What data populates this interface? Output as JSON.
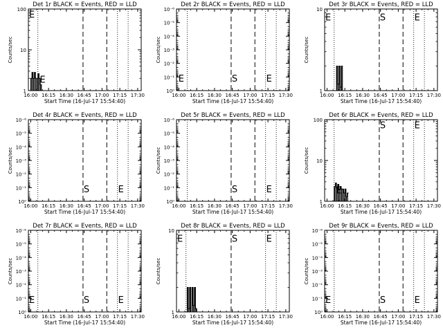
{
  "chart_data": [
    {
      "type": "line",
      "title": "Det 1r BLACK = Events, RED = LLD",
      "xlabel": "Start Time (16-Jul-17 15:54:40)",
      "ylabel": "Counts/sec",
      "yscale": "log",
      "ylim": [
        1,
        100
      ],
      "yticks": [
        {
          "v": 1,
          "label": "1"
        },
        {
          "v": 10,
          "label": "10"
        },
        {
          "v": 100,
          "label": "100"
        }
      ],
      "xlim": [
        "15:58",
        "17:33"
      ],
      "xticks": [
        "16:00",
        "16:15",
        "16:30",
        "16:45",
        "17:00",
        "17:15",
        "17:30"
      ],
      "dotted_lines_x": [
        "16:06",
        "17:13",
        "17:22"
      ],
      "dashed_lines_x": [
        "16:44",
        "17:04"
      ],
      "markers": [
        {
          "label": "E",
          "x": "15:58",
          "y": 75
        },
        {
          "label": "E",
          "x": "16:07",
          "y": 1.9
        }
      ],
      "series": [
        {
          "color": "#000000",
          "x": [
            "16:00",
            "16:01",
            "16:02",
            "16:03",
            "16:04",
            "16:05",
            "16:06",
            "16:07",
            "16:08",
            "16:09"
          ],
          "y": [
            2,
            2.8,
            2,
            2.8,
            2,
            2,
            2.6,
            2,
            1.4,
            1
          ]
        }
      ]
    },
    {
      "type": "line",
      "title": "Det 2r BLACK = Events, RED = LLD",
      "xlabel": "Start Time (16-Jul-17 15:54:40)",
      "ylabel": "Counts/sec",
      "yscale": "log",
      "ylim": [
        1,
        1e-06
      ],
      "yticks": [
        {
          "v": 1,
          "label": "10⁰"
        },
        {
          "v": 0.1,
          "label": "10⁻¹"
        },
        {
          "v": 0.01,
          "label": "10⁻²"
        },
        {
          "v": 0.001,
          "label": "10⁻³"
        },
        {
          "v": 0.0001,
          "label": "10⁻⁴"
        },
        {
          "v": 1e-05,
          "label": "10⁻⁵"
        },
        {
          "v": 1e-06,
          "label": "10⁻⁶"
        }
      ],
      "xlim": [
        "15:58",
        "17:33"
      ],
      "xticks": [
        "16:00",
        "16:15",
        "16:30",
        "16:45",
        "17:00",
        "17:15",
        "17:30"
      ],
      "dotted_lines_x": [
        "16:07",
        "17:13",
        "17:22"
      ],
      "dashed_lines_x": [
        "16:44",
        "17:04"
      ],
      "markers": [
        {
          "label": "E",
          "x": "15:59",
          "y": 0.12
        },
        {
          "label": "S",
          "x": "16:44",
          "y": 0.12
        },
        {
          "label": "E",
          "x": "17:13",
          "y": 0.12
        }
      ],
      "series": []
    },
    {
      "type": "line",
      "title": "Det 3r BLACK = Events, RED = LLD",
      "xlabel": "Start Time (16-Jul-17 15:54:40)",
      "ylabel": "Counts/sec",
      "yscale": "log",
      "ylim": [
        1,
        10
      ],
      "yticks": [
        {
          "v": 1,
          "label": "1"
        },
        {
          "v": 10,
          "label": "10"
        }
      ],
      "xlim": [
        "15:58",
        "17:33"
      ],
      "xticks": [
        "16:00",
        "16:15",
        "16:30",
        "16:45",
        "17:00",
        "17:15",
        "17:30"
      ],
      "dotted_lines_x": [
        "16:06",
        "17:13",
        "17:22"
      ],
      "dashed_lines_x": [
        "16:44",
        "17:04"
      ],
      "markers": [
        {
          "label": "E",
          "x": "15:58",
          "y": 8
        },
        {
          "label": "S",
          "x": "16:44",
          "y": 8
        },
        {
          "label": "E",
          "x": "17:13",
          "y": 8
        }
      ],
      "series": [
        {
          "color": "#000000",
          "x": [
            "16:07",
            "16:08",
            "16:09",
            "16:10",
            "16:11",
            "16:12",
            "16:13"
          ],
          "y": [
            1,
            2,
            1.2,
            2,
            1.1,
            2,
            1
          ]
        }
      ]
    },
    {
      "type": "line",
      "title": "Det 4r BLACK = Events, RED = LLD",
      "xlabel": "Start Time (16-Jul-17 15:54:40)",
      "ylabel": "Counts/sec",
      "yscale": "log",
      "ylim": [
        1,
        1e-06
      ],
      "yticks": [
        {
          "v": 1,
          "label": "10⁰"
        },
        {
          "v": 0.1,
          "label": "10⁻¹"
        },
        {
          "v": 0.01,
          "label": "10⁻²"
        },
        {
          "v": 0.001,
          "label": "10⁻³"
        },
        {
          "v": 0.0001,
          "label": "10⁻⁴"
        },
        {
          "v": 1e-05,
          "label": "10⁻⁵"
        },
        {
          "v": 1e-06,
          "label": "10⁻⁶"
        }
      ],
      "xlim": [
        "15:58",
        "17:33"
      ],
      "xticks": [
        "16:00",
        "16:15",
        "16:30",
        "16:45",
        "17:00",
        "17:15",
        "17:30"
      ],
      "dotted_lines_x": [
        "16:06",
        "17:13",
        "17:22"
      ],
      "dashed_lines_x": [
        "16:44",
        "17:04"
      ],
      "markers": [
        {
          "label": "S",
          "x": "16:44",
          "y": 0.12
        },
        {
          "label": "E",
          "x": "17:13",
          "y": 0.12
        }
      ],
      "series": []
    },
    {
      "type": "line",
      "title": "Det 5r BLACK = Events, RED = LLD",
      "xlabel": "Start Time (16-Jul-17 15:54:40)",
      "ylabel": "Counts/sec",
      "yscale": "log",
      "ylim": [
        1,
        1e-06
      ],
      "yticks": [
        {
          "v": 1,
          "label": "10⁰"
        },
        {
          "v": 0.1,
          "label": "10⁻¹"
        },
        {
          "v": 0.01,
          "label": "10⁻²"
        },
        {
          "v": 0.001,
          "label": "10⁻³"
        },
        {
          "v": 0.0001,
          "label": "10⁻⁴"
        },
        {
          "v": 1e-05,
          "label": "10⁻⁵"
        },
        {
          "v": 1e-06,
          "label": "10⁻⁶"
        }
      ],
      "xlim": [
        "15:58",
        "17:33"
      ],
      "xticks": [
        "16:00",
        "16:15",
        "16:30",
        "16:45",
        "17:00",
        "17:15",
        "17:30"
      ],
      "dotted_lines_x": [
        "16:07",
        "17:13",
        "17:22"
      ],
      "dashed_lines_x": [
        "16:44",
        "17:04"
      ],
      "markers": [
        {
          "label": "S",
          "x": "16:44",
          "y": 0.12
        },
        {
          "label": "E",
          "x": "17:13",
          "y": 0.12
        }
      ],
      "series": []
    },
    {
      "type": "line",
      "title": "Det 6r BLACK = Events, RED = LLD",
      "xlabel": "Start Time (16-Jul-17 15:54:40)",
      "ylabel": "Counts/sec",
      "yscale": "log",
      "ylim": [
        1,
        100
      ],
      "yticks": [
        {
          "v": 1,
          "label": "1"
        },
        {
          "v": 10,
          "label": "10"
        },
        {
          "v": 100,
          "label": "100"
        }
      ],
      "xlim": [
        "15:58",
        "17:33"
      ],
      "xticks": [
        "16:00",
        "16:15",
        "16:30",
        "16:45",
        "17:00",
        "17:15",
        "17:30"
      ],
      "dotted_lines_x": [
        "16:06",
        "17:13",
        "17:22"
      ],
      "dashed_lines_x": [
        "16:44",
        "17:04"
      ],
      "markers": [
        {
          "label": "S",
          "x": "16:44",
          "y": 75
        },
        {
          "label": "E",
          "x": "17:13",
          "y": 75
        },
        {
          "label": "E",
          "x": "16:07",
          "y": 1.9
        }
      ],
      "series": [
        {
          "color": "#000000",
          "x": [
            "16:06",
            "16:07",
            "16:08",
            "16:09",
            "16:10",
            "16:11",
            "16:12",
            "16:13",
            "16:14",
            "16:15",
            "16:16",
            "16:17"
          ],
          "y": [
            2.3,
            2.8,
            2.1,
            2.6,
            2,
            2.3,
            2,
            2,
            1.6,
            2,
            1.3,
            1.6
          ]
        }
      ]
    },
    {
      "type": "line",
      "title": "Det 7r BLACK = Events, RED = LLD",
      "xlabel": "Start Time (16-Jul-17 15:54:40)",
      "ylabel": "Counts/sec",
      "yscale": "log",
      "ylim": [
        1,
        1e-06
      ],
      "yticks": [
        {
          "v": 1,
          "label": "10⁰"
        },
        {
          "v": 0.1,
          "label": "10⁻¹"
        },
        {
          "v": 0.01,
          "label": "10⁻²"
        },
        {
          "v": 0.001,
          "label": "10⁻³"
        },
        {
          "v": 0.0001,
          "label": "10⁻⁴"
        },
        {
          "v": 1e-05,
          "label": "10⁻⁵"
        },
        {
          "v": 1e-06,
          "label": "10⁻⁶"
        }
      ],
      "xlim": [
        "15:58",
        "17:33"
      ],
      "xticks": [
        "16:00",
        "16:15",
        "16:30",
        "16:45",
        "17:00",
        "17:15",
        "17:30"
      ],
      "dotted_lines_x": [
        "16:06",
        "17:13",
        "17:22"
      ],
      "dashed_lines_x": [
        "16:44",
        "17:04"
      ],
      "markers": [
        {
          "label": "E",
          "x": "15:58",
          "y": 0.12
        },
        {
          "label": "S",
          "x": "16:44",
          "y": 0.12
        },
        {
          "label": "E",
          "x": "17:13",
          "y": 0.12
        }
      ],
      "series": []
    },
    {
      "type": "line",
      "title": "Det 8r BLACK = Events, RED = LLD",
      "xlabel": "Start Time (16-Jul-17 15:54:40)",
      "ylabel": "Counts/sec",
      "yscale": "log",
      "ylim": [
        1,
        10
      ],
      "yticks": [
        {
          "v": 1,
          "label": "1"
        },
        {
          "v": 10,
          "label": "10"
        }
      ],
      "xlim": [
        "15:58",
        "17:33"
      ],
      "xticks": [
        "16:00",
        "16:15",
        "16:30",
        "16:45",
        "17:00",
        "17:15",
        "17:30"
      ],
      "dotted_lines_x": [
        "16:06",
        "17:13",
        "17:22"
      ],
      "dashed_lines_x": [
        "16:44"
      ],
      "markers": [
        {
          "label": "E",
          "x": "15:58",
          "y": 8
        },
        {
          "label": "S",
          "x": "16:44",
          "y": 8
        },
        {
          "label": "E",
          "x": "17:13",
          "y": 8
        }
      ],
      "series": [
        {
          "color": "#000000",
          "x": [
            "16:06",
            "16:07",
            "16:08",
            "16:09",
            "16:10",
            "16:11",
            "16:12",
            "16:13",
            "16:14",
            "16:15"
          ],
          "y": [
            1,
            2,
            1.1,
            2,
            1,
            2,
            1.2,
            2,
            1.1,
            1
          ]
        }
      ]
    },
    {
      "type": "line",
      "title": "Det 9r BLACK = Events, RED = LLD",
      "xlabel": "Start Time (16-Jul-17 15:54:40)",
      "ylabel": "Counts/sec",
      "yscale": "log",
      "ylim": [
        1,
        1e-06
      ],
      "yticks": [
        {
          "v": 1,
          "label": "10⁰"
        },
        {
          "v": 0.1,
          "label": "10⁻¹"
        },
        {
          "v": 0.01,
          "label": "10⁻²"
        },
        {
          "v": 0.001,
          "label": "10⁻³"
        },
        {
          "v": 0.0001,
          "label": "10⁻⁴"
        },
        {
          "v": 1e-05,
          "label": "10⁻⁵"
        },
        {
          "v": 1e-06,
          "label": "10⁻⁶"
        }
      ],
      "xlim": [
        "15:58",
        "17:33"
      ],
      "xticks": [
        "16:00",
        "16:15",
        "16:30",
        "16:45",
        "17:00",
        "17:15",
        "17:30"
      ],
      "dotted_lines_x": [
        "16:06",
        "17:13",
        "17:22"
      ],
      "dashed_lines_x": [
        "16:44",
        "17:04"
      ],
      "markers": [
        {
          "label": "E",
          "x": "15:58",
          "y": 0.12
        },
        {
          "label": "S",
          "x": "16:44",
          "y": 0.12
        },
        {
          "label": "E",
          "x": "17:13",
          "y": 0.12
        }
      ],
      "series": []
    }
  ]
}
